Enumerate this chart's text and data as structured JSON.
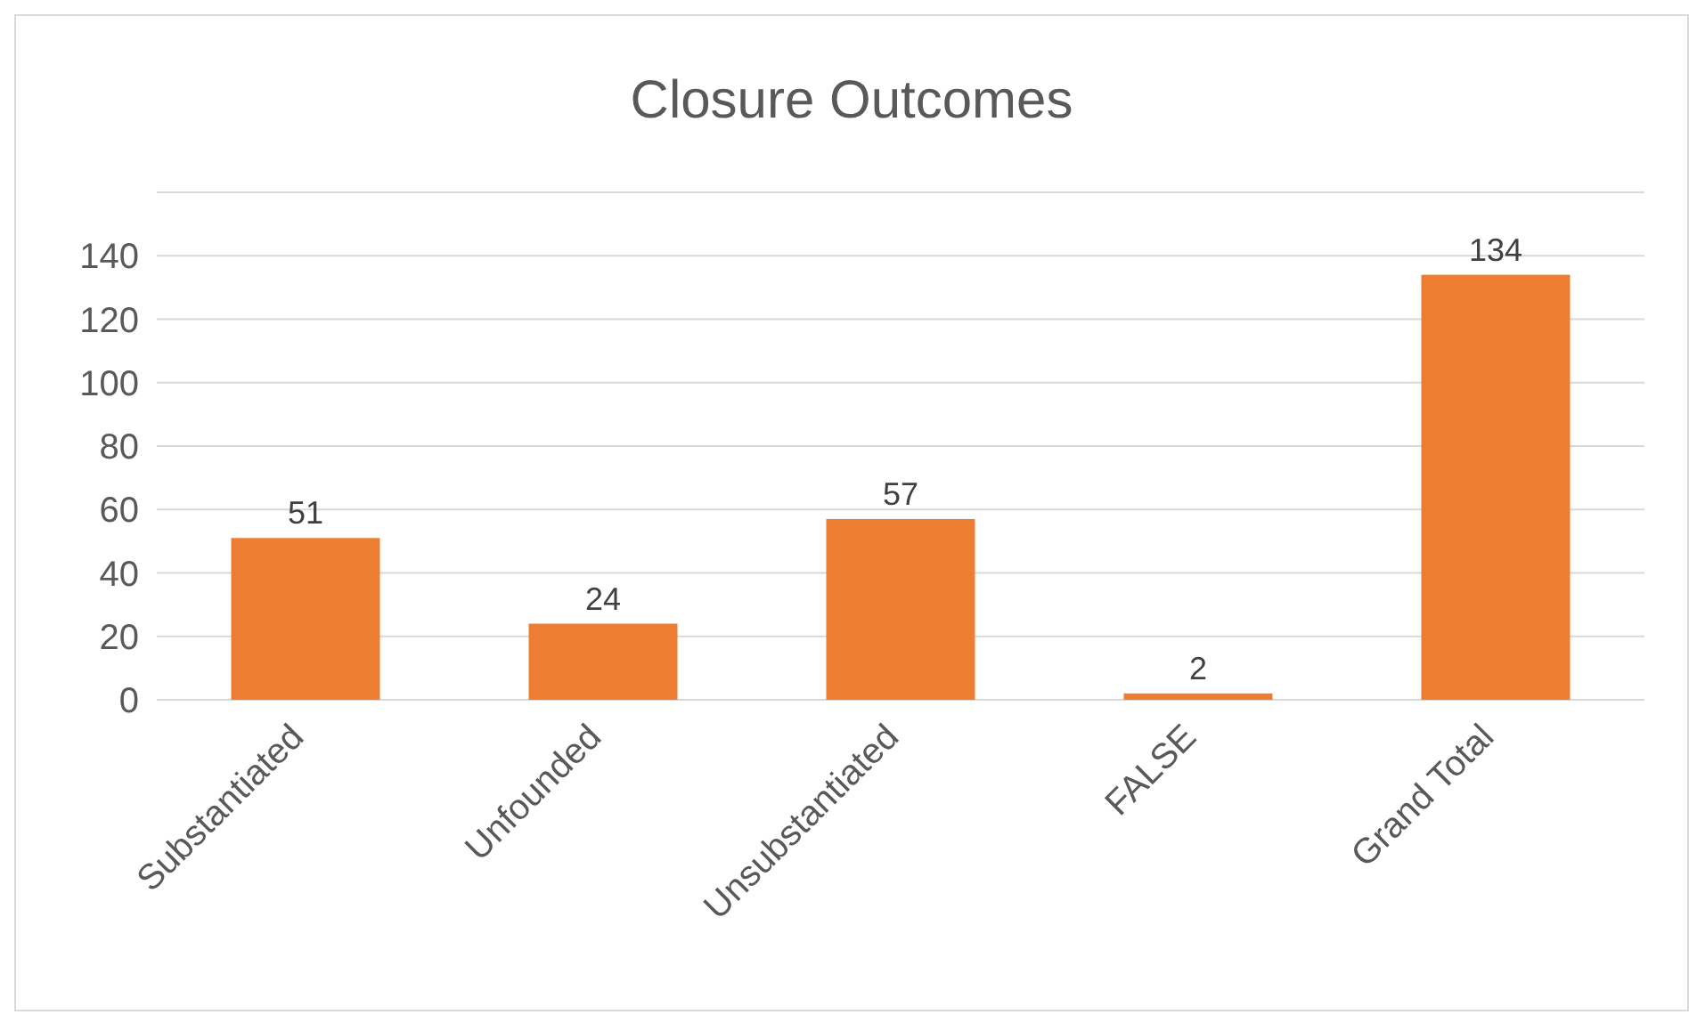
{
  "chart_data": {
    "type": "bar",
    "title": "Closure Outcomes",
    "categories": [
      "Substantiated",
      "Unfounded",
      "Unsubstantiated",
      "FALSE",
      "Grand Total"
    ],
    "values": [
      51,
      24,
      57,
      2,
      134
    ],
    "color": "#ed7d31",
    "ylim": [
      0,
      160
    ],
    "yticks": [
      0,
      20,
      40,
      60,
      80,
      100,
      120,
      140,
      {
        "value": 160,
        "label": null
      }
    ],
    "grid": "y",
    "data_labels": true
  }
}
